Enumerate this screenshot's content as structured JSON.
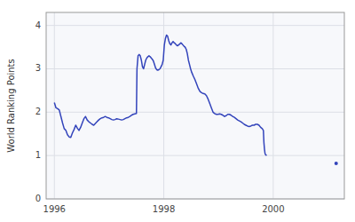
{
  "chart_data": {
    "type": "line",
    "ylabel": "World Ranking Points",
    "xlim": [
      1995.85,
      2001.3
    ],
    "ylim": [
      0,
      4.3
    ],
    "xticks": [
      1996,
      1998,
      2000
    ],
    "yticks": [
      0,
      1,
      2,
      3,
      4
    ],
    "grid": true,
    "series": [
      {
        "color": "#3344bb",
        "x": [
          1996.0,
          1996.03,
          1996.06,
          1996.09,
          1996.12,
          1996.15,
          1996.18,
          1996.21,
          1996.24,
          1996.27,
          1996.3,
          1996.33,
          1996.36,
          1996.39,
          1996.42,
          1996.45,
          1996.48,
          1996.51,
          1996.54,
          1996.57,
          1996.6,
          1996.63,
          1996.66,
          1996.69,
          1996.72,
          1996.75,
          1996.78,
          1996.81,
          1996.84,
          1996.87,
          1996.9,
          1996.93,
          1996.96,
          1996.99,
          1997.02,
          1997.05,
          1997.08,
          1997.11,
          1997.14,
          1997.17,
          1997.2,
          1997.23,
          1997.26,
          1997.29,
          1997.32,
          1997.35,
          1997.38,
          1997.41,
          1997.44,
          1997.47,
          1997.5,
          1997.51,
          1997.53,
          1997.55,
          1997.57,
          1997.59,
          1997.61,
          1997.63,
          1997.65,
          1997.67,
          1997.69,
          1997.71,
          1997.73,
          1997.75,
          1997.77,
          1997.79,
          1997.81,
          1997.83,
          1997.85,
          1997.87,
          1997.89,
          1997.91,
          1997.93,
          1997.95,
          1997.97,
          1997.99,
          1998.01,
          1998.03,
          1998.05,
          1998.07,
          1998.09,
          1998.11,
          1998.13,
          1998.15,
          1998.17,
          1998.19,
          1998.21,
          1998.23,
          1998.25,
          1998.27,
          1998.29,
          1998.31,
          1998.33,
          1998.35,
          1998.37,
          1998.39,
          1998.41,
          1998.43,
          1998.45,
          1998.47,
          1998.49,
          1998.51,
          1998.54,
          1998.57,
          1998.6,
          1998.63,
          1998.66,
          1998.69,
          1998.72,
          1998.75,
          1998.78,
          1998.81,
          1998.84,
          1998.87,
          1998.9,
          1998.93,
          1998.96,
          1998.99,
          1999.02,
          1999.05,
          1999.08,
          1999.11,
          1999.14,
          1999.17,
          1999.2,
          1999.23,
          1999.26,
          1999.29,
          1999.32,
          1999.35,
          1999.38,
          1999.41,
          1999.44,
          1999.47,
          1999.5,
          1999.53,
          1999.56,
          1999.59,
          1999.62,
          1999.65,
          1999.68,
          1999.71,
          1999.74,
          1999.77,
          1999.8,
          1999.82,
          1999.83,
          1999.84,
          1999.85,
          1999.86,
          1999.88
        ],
        "values": [
          2.22,
          2.1,
          2.08,
          2.05,
          1.9,
          1.75,
          1.62,
          1.58,
          1.48,
          1.43,
          1.42,
          1.52,
          1.6,
          1.7,
          1.63,
          1.58,
          1.65,
          1.75,
          1.85,
          1.9,
          1.82,
          1.78,
          1.75,
          1.72,
          1.7,
          1.74,
          1.78,
          1.82,
          1.85,
          1.87,
          1.88,
          1.9,
          1.88,
          1.87,
          1.85,
          1.83,
          1.82,
          1.83,
          1.85,
          1.84,
          1.83,
          1.82,
          1.83,
          1.85,
          1.87,
          1.88,
          1.9,
          1.93,
          1.95,
          1.96,
          1.97,
          3.0,
          3.3,
          3.33,
          3.3,
          3.2,
          3.05,
          3.0,
          3.1,
          3.2,
          3.25,
          3.28,
          3.3,
          3.28,
          3.25,
          3.22,
          3.18,
          3.1,
          3.02,
          2.98,
          2.97,
          2.98,
          3.0,
          3.05,
          3.1,
          3.2,
          3.55,
          3.7,
          3.78,
          3.75,
          3.65,
          3.58,
          3.55,
          3.6,
          3.63,
          3.6,
          3.58,
          3.55,
          3.53,
          3.55,
          3.57,
          3.6,
          3.58,
          3.55,
          3.52,
          3.5,
          3.45,
          3.35,
          3.2,
          3.1,
          3.0,
          2.92,
          2.83,
          2.75,
          2.65,
          2.55,
          2.48,
          2.45,
          2.43,
          2.42,
          2.38,
          2.3,
          2.2,
          2.1,
          2.0,
          1.97,
          1.95,
          1.95,
          1.96,
          1.95,
          1.93,
          1.9,
          1.92,
          1.95,
          1.95,
          1.93,
          1.9,
          1.88,
          1.85,
          1.82,
          1.8,
          1.78,
          1.75,
          1.72,
          1.7,
          1.68,
          1.67,
          1.68,
          1.7,
          1.7,
          1.72,
          1.72,
          1.7,
          1.65,
          1.62,
          1.58,
          1.3,
          1.15,
          1.05,
          1.02,
          1.0
        ]
      },
      {
        "type": "scatter",
        "marker": "circle",
        "color": "#3344bb",
        "x": [
          2001.15
        ],
        "values": [
          0.82
        ]
      }
    ]
  }
}
